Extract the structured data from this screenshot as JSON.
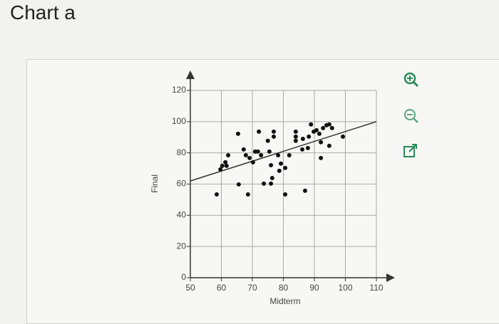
{
  "page_title": "Chart a",
  "chart_data": {
    "type": "scatter",
    "x_label": "Midterm",
    "y_label": "Final",
    "xlim": [
      50,
      110
    ],
    "ylim": [
      0,
      120
    ],
    "xticks": [
      50,
      60,
      70,
      80,
      90,
      100,
      110
    ],
    "yticks": [
      0,
      20,
      40,
      60,
      80,
      100,
      120
    ],
    "grid": true,
    "color": "#111111",
    "line_color": "#333333",
    "x": [
      58.5,
      59.7,
      60.3,
      61.3,
      62.2,
      61.7,
      65.6,
      65.4,
      67.2,
      67.9,
      68.6,
      69.1,
      70.2,
      70.9,
      72.1,
      71.8,
      72.8,
      73.7,
      75,
      75.5,
      76,
      76.4,
      76.9,
      76.9,
      76,
      78.3,
      78.7,
      79.2,
      80.6,
      80.6,
      81.9,
      84,
      84,
      84,
      86.1,
      86.3,
      87,
      87.9,
      88.2,
      88.9,
      89.8,
      90.7,
      91.6,
      92.1,
      92.1,
      92.8,
      93.9,
      94.8,
      94.8,
      95.7,
      99.2
    ],
    "values": [
      53.4,
      69.4,
      71.7,
      74,
      78.5,
      71.7,
      59.8,
      92.2,
      82.2,
      78.5,
      53.4,
      76.7,
      74,
      80.8,
      93.6,
      80.8,
      78.5,
      60.3,
      87.7,
      80.8,
      60.3,
      63.9,
      93.6,
      90.4,
      72.1,
      78.5,
      68.5,
      73.1,
      70.3,
      53.4,
      78.5,
      93.6,
      90.4,
      87.7,
      82.2,
      89,
      55.7,
      83.1,
      90.4,
      98.2,
      93.6,
      94.5,
      92.2,
      76.7,
      86.8,
      95.9,
      97.7,
      98.2,
      84.5,
      95.9,
      90.4
    ],
    "trend_x": [
      50,
      110
    ],
    "trend_y": [
      62,
      100
    ]
  }
}
